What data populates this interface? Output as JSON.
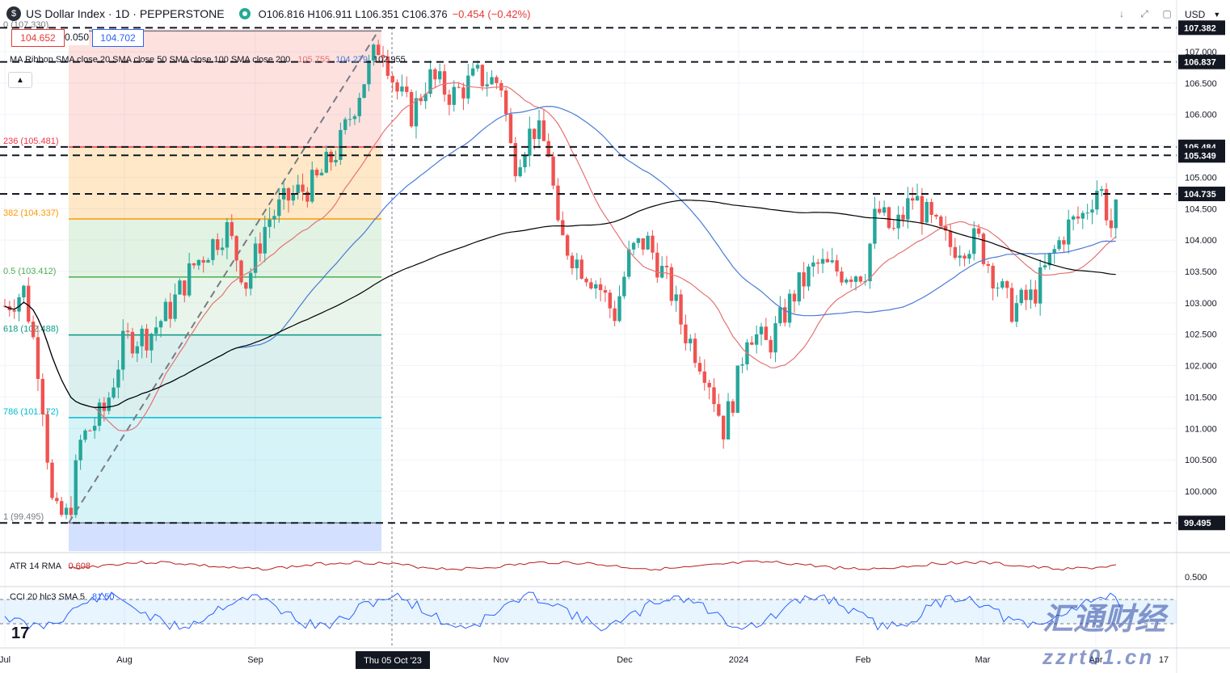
{
  "header": {
    "title": "US Dollar Index · 1D · PEPPERSTONE",
    "ohlc": "O106.816 H106.911 L106.351 C106.376",
    "change": "−0.454 (−0.42%)",
    "sell_price": "104.652",
    "spread": "0.050",
    "buy_price": "104.702",
    "currency": "USD"
  },
  "indicators": {
    "ma_label": "MA Ribbon SMA close 20 SMA close 50 SMA close 100 SMA close 200",
    "ma20_value": "105.755",
    "ma50_value": "104.279",
    "ma200_value": "102.955",
    "atr_label": "ATR 14 RMA",
    "atr_value": "0.608",
    "cci_label": "CCI 20 hlc3 SMA 5",
    "cci_value": "81.50"
  },
  "fib_levels": [
    {
      "label": "0 (107.330)",
      "price": 107.33
    },
    {
      "label": "236 (105.481)",
      "price": 105.481
    },
    {
      "label": "382 (104.337)",
      "price": 104.337
    },
    {
      "label": "0.5 (103.412)",
      "price": 103.412
    },
    {
      "label": "618 (102.488)",
      "price": 102.488
    },
    {
      "label": "786 (101.172)",
      "price": 101.172
    },
    {
      "label": "1 (99.495)",
      "price": 99.495
    }
  ],
  "price_axis_labels": [
    "107.000",
    "106.500",
    "106.000",
    "105.500",
    "105.000",
    "104.500",
    "104.000",
    "103.500",
    "103.000",
    "102.500",
    "102.000",
    "101.500",
    "101.000",
    "100.500",
    "100.000"
  ],
  "highlight_labels": [
    "107.382",
    "106.837",
    "105.484",
    "105.349",
    "104.735",
    "99.495"
  ],
  "atr_axis_label": "0.500",
  "time_labels": [
    "Jul",
    "Aug",
    "Sep",
    "Nov",
    "Dec",
    "2024",
    "Feb",
    "Mar",
    "Apr",
    "17"
  ],
  "crosshair_date": "Thu 05 Oct '23",
  "watermark": {
    "cn": "汇通财经",
    "site": "zzrt01.cn"
  },
  "chart_data": {
    "type": "candlestick",
    "title": "US Dollar Index · 1D · PEPPERSTONE",
    "ylim": [
      99.0,
      107.5
    ],
    "horizontal_levels": [
      107.382,
      106.837,
      105.484,
      105.349,
      104.735,
      99.495
    ],
    "series": [
      {
        "name": "SMA 20",
        "color": "#e57373"
      },
      {
        "name": "SMA 50",
        "color": "#4a7bd5"
      },
      {
        "name": "SMA 200",
        "color": "#000000"
      }
    ],
    "colors": {
      "up": "#26a69a",
      "down": "#ef5350"
    },
    "atr_last": 0.608,
    "cci_last": 81.5
  }
}
